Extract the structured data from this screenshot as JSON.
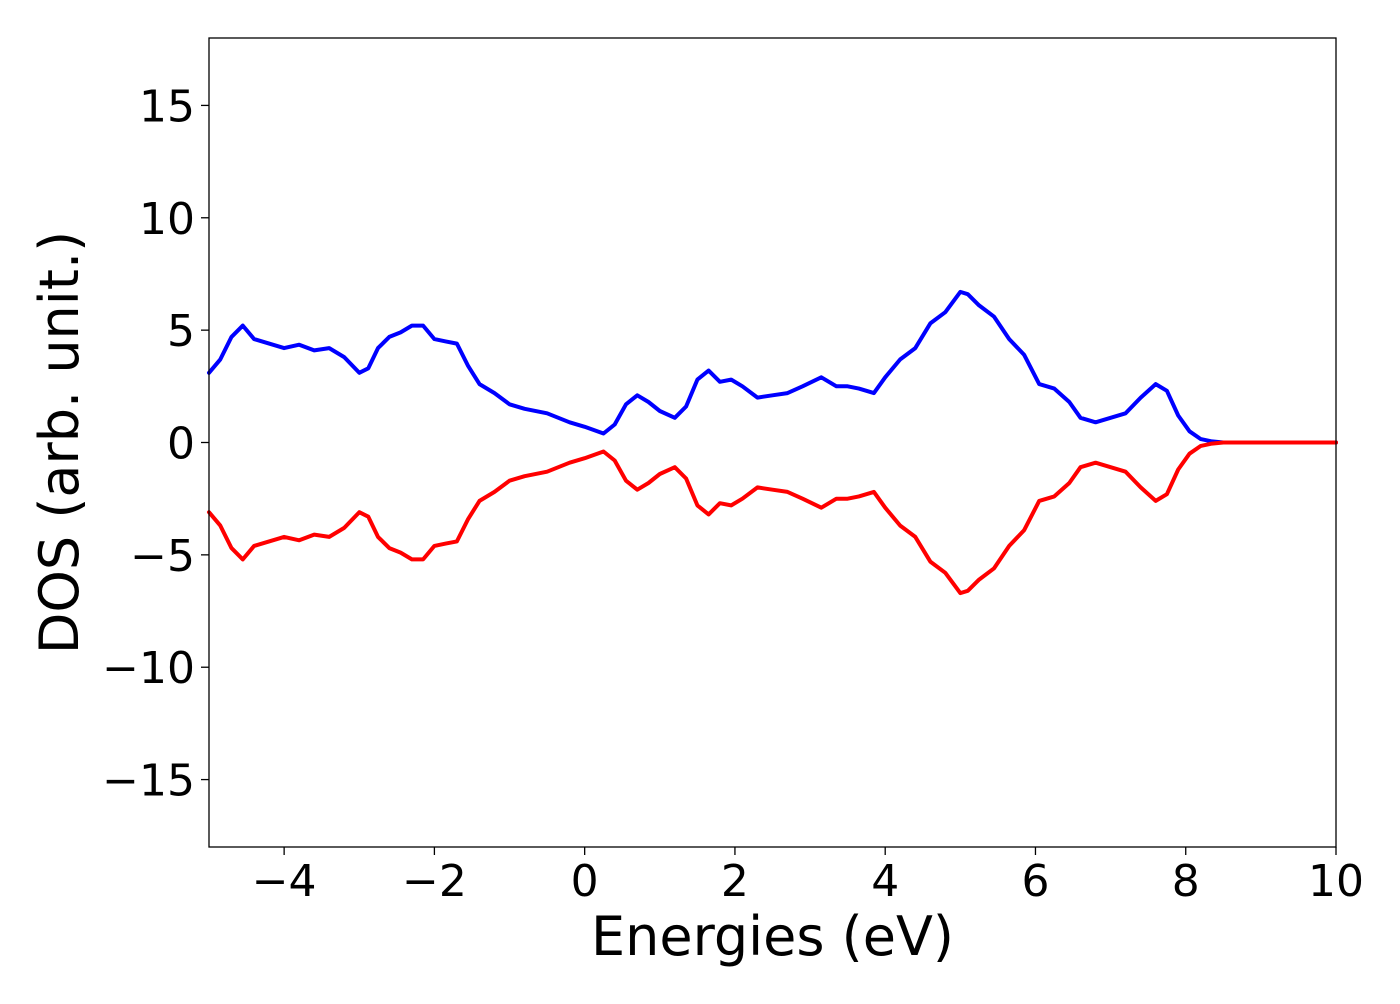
{
  "chart_data": {
    "type": "line",
    "xlabel": "Energies (eV)",
    "ylabel": "DOS (arb. unit.)",
    "xlim": [
      -5,
      10
    ],
    "ylim": [
      -18,
      18
    ],
    "x_ticks": [
      -4,
      -2,
      0,
      2,
      4,
      6,
      8,
      10
    ],
    "x_tick_labels": [
      "−4",
      "−2",
      "0",
      "2",
      "4",
      "6",
      "8",
      "10"
    ],
    "y_ticks": [
      -15,
      -10,
      -5,
      0,
      5,
      10,
      15
    ],
    "y_tick_labels": [
      "−15",
      "−10",
      "−5",
      "0",
      "5",
      "10",
      "15"
    ],
    "grid": false,
    "legend": "none",
    "series": [
      {
        "color": "#0000ff",
        "x": [
          -5.0,
          -4.85,
          -4.7,
          -4.55,
          -4.4,
          -4.2,
          -4.0,
          -3.8,
          -3.6,
          -3.4,
          -3.2,
          -3.0,
          -2.88,
          -2.75,
          -2.6,
          -2.45,
          -2.3,
          -2.15,
          -2.0,
          -1.85,
          -1.7,
          -1.55,
          -1.4,
          -1.2,
          -1.0,
          -0.8,
          -0.5,
          -0.2,
          0.0,
          0.25,
          0.4,
          0.55,
          0.7,
          0.85,
          1.0,
          1.2,
          1.35,
          1.5,
          1.65,
          1.8,
          1.95,
          2.1,
          2.3,
          2.5,
          2.7,
          2.9,
          3.15,
          3.35,
          3.5,
          3.65,
          3.85,
          4.0,
          4.2,
          4.4,
          4.6,
          4.8,
          5.0,
          5.1,
          5.25,
          5.45,
          5.65,
          5.85,
          6.05,
          6.25,
          6.45,
          6.6,
          6.8,
          7.0,
          7.2,
          7.4,
          7.6,
          7.75,
          7.9,
          8.05,
          8.2,
          8.35,
          8.5,
          9.0,
          10.0
        ],
        "y": [
          3.1,
          3.7,
          4.7,
          5.2,
          4.6,
          4.4,
          4.2,
          4.35,
          4.1,
          4.2,
          3.8,
          3.1,
          3.3,
          4.2,
          4.7,
          4.9,
          5.2,
          5.2,
          4.6,
          4.5,
          4.4,
          3.4,
          2.6,
          2.2,
          1.7,
          1.5,
          1.3,
          0.9,
          0.7,
          0.4,
          0.8,
          1.7,
          2.1,
          1.8,
          1.4,
          1.1,
          1.6,
          2.8,
          3.2,
          2.7,
          2.8,
          2.5,
          2.0,
          2.1,
          2.2,
          2.5,
          2.9,
          2.5,
          2.5,
          2.4,
          2.2,
          2.9,
          3.7,
          4.2,
          5.3,
          5.8,
          6.7,
          6.6,
          6.1,
          5.6,
          4.6,
          3.9,
          2.6,
          2.4,
          1.8,
          1.1,
          0.9,
          1.1,
          1.3,
          2.0,
          2.6,
          2.3,
          1.2,
          0.5,
          0.15,
          0.05,
          0.0,
          0.0,
          0.0
        ]
      },
      {
        "color": "#ff0000",
        "x": [
          -5.0,
          -4.85,
          -4.7,
          -4.55,
          -4.4,
          -4.2,
          -4.0,
          -3.8,
          -3.6,
          -3.4,
          -3.2,
          -3.0,
          -2.88,
          -2.75,
          -2.6,
          -2.45,
          -2.3,
          -2.15,
          -2.0,
          -1.85,
          -1.7,
          -1.55,
          -1.4,
          -1.2,
          -1.0,
          -0.8,
          -0.5,
          -0.2,
          0.0,
          0.25,
          0.4,
          0.55,
          0.7,
          0.85,
          1.0,
          1.2,
          1.35,
          1.5,
          1.65,
          1.8,
          1.95,
          2.1,
          2.3,
          2.5,
          2.7,
          2.9,
          3.15,
          3.35,
          3.5,
          3.65,
          3.85,
          4.0,
          4.2,
          4.4,
          4.6,
          4.8,
          5.0,
          5.1,
          5.25,
          5.45,
          5.65,
          5.85,
          6.05,
          6.25,
          6.45,
          6.6,
          6.8,
          7.0,
          7.2,
          7.4,
          7.6,
          7.75,
          7.9,
          8.05,
          8.2,
          8.35,
          8.5,
          9.0,
          10.0
        ],
        "y": [
          -3.1,
          -3.7,
          -4.7,
          -5.2,
          -4.6,
          -4.4,
          -4.2,
          -4.35,
          -4.1,
          -4.2,
          -3.8,
          -3.1,
          -3.3,
          -4.2,
          -4.7,
          -4.9,
          -5.2,
          -5.2,
          -4.6,
          -4.5,
          -4.4,
          -3.4,
          -2.6,
          -2.2,
          -1.7,
          -1.5,
          -1.3,
          -0.9,
          -0.7,
          -0.4,
          -0.8,
          -1.7,
          -2.1,
          -1.8,
          -1.4,
          -1.1,
          -1.6,
          -2.8,
          -3.2,
          -2.7,
          -2.8,
          -2.5,
          -2.0,
          -2.1,
          -2.2,
          -2.5,
          -2.9,
          -2.5,
          -2.5,
          -2.4,
          -2.2,
          -2.9,
          -3.7,
          -4.2,
          -5.3,
          -5.8,
          -6.7,
          -6.6,
          -6.1,
          -5.6,
          -4.6,
          -3.9,
          -2.6,
          -2.4,
          -1.8,
          -1.1,
          -0.9,
          -1.1,
          -1.3,
          -2.0,
          -2.6,
          -2.3,
          -1.2,
          -0.5,
          -0.15,
          -0.05,
          0.0,
          0.0,
          0.0
        ]
      }
    ]
  }
}
